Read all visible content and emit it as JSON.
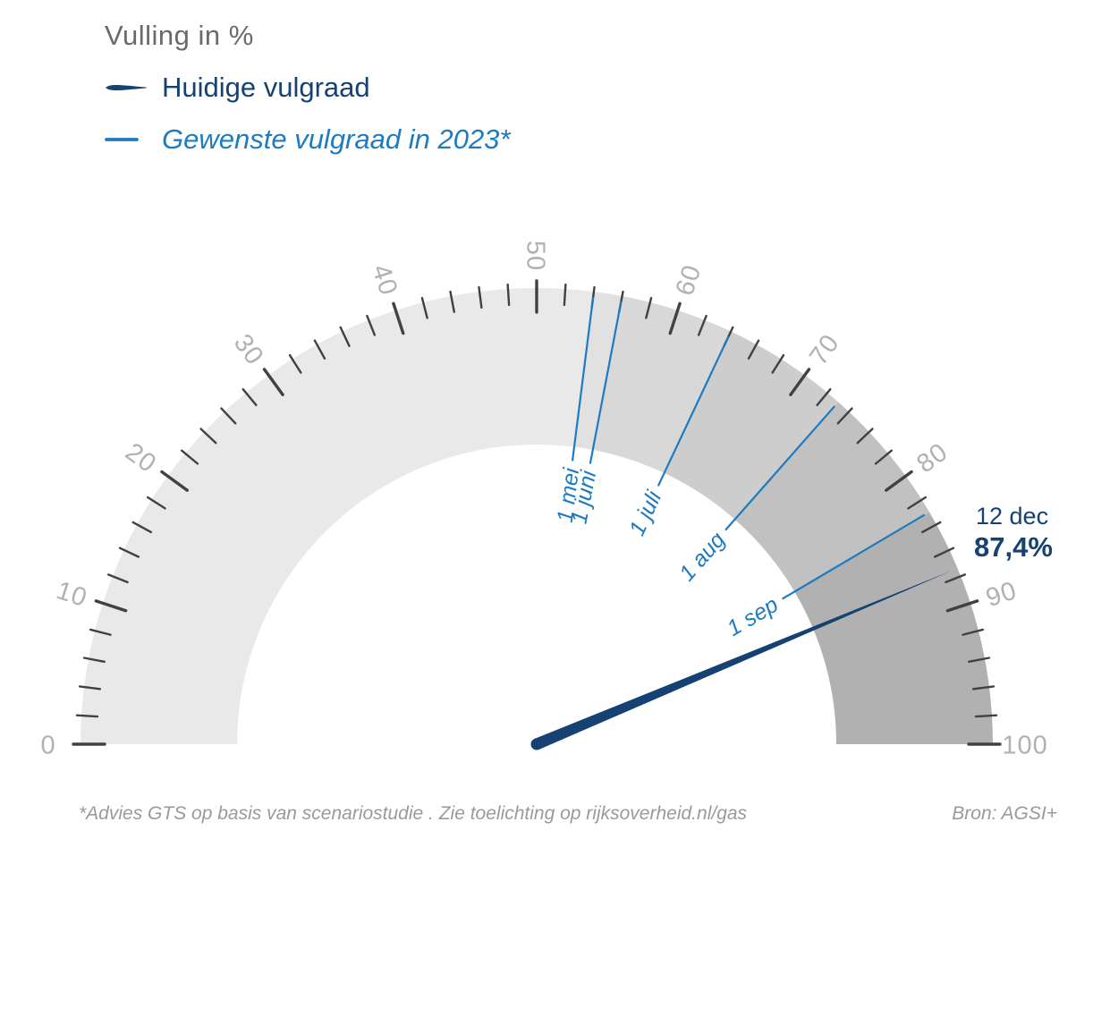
{
  "title": {
    "text": "Vulling in %"
  },
  "legend": {
    "items": [
      {
        "label": "Huidige vulgraad",
        "marker": "needle-dash",
        "color": "#154273",
        "style": "normal"
      },
      {
        "label": "Gewenste vulgraad in 2023*",
        "marker": "line-dash",
        "color": "#1e7bc0",
        "style": "italic"
      }
    ]
  },
  "gauge": {
    "min": 0,
    "max": 100,
    "minor_tick_step": 2,
    "major_tick_step": 10,
    "tick_label_values": [
      0,
      10,
      20,
      30,
      40,
      50,
      60,
      70,
      80,
      90,
      100
    ],
    "segments": [
      {
        "from": 0,
        "to": 54,
        "color": "#e9e9e9"
      },
      {
        "from": 54,
        "to": 56,
        "color": "#e1e1e1"
      },
      {
        "from": 56,
        "to": 64,
        "color": "#d8d8d8"
      },
      {
        "from": 64,
        "to": 73,
        "color": "#cdcdcd"
      },
      {
        "from": 73,
        "to": 83,
        "color": "#c1c1c1"
      },
      {
        "from": 83,
        "to": 100,
        "color": "#b1b1b1"
      }
    ],
    "targets": [
      {
        "label": "1 mei",
        "value": 54
      },
      {
        "label": "1 juni",
        "value": 56
      },
      {
        "label": "1 juli",
        "value": 64
      },
      {
        "label": "1 aug",
        "value": 73
      },
      {
        "label": "1 sep",
        "value": 83
      }
    ],
    "needle": {
      "value": 87.4,
      "date_label": "12 dec",
      "value_label": "87,4%"
    }
  },
  "footnote": "*Advies GTS op basis van scenariostudie . Zie toelichting op rijksoverheid.nl/gas",
  "source": "Bron: AGSI+",
  "colors": {
    "navy": "#154273",
    "blue": "#1e7bc0",
    "title_gray": "#6a6a6a",
    "tick_label_gray": "#b1b1b1",
    "tick_stroke": "#414141",
    "footnote_gray": "#9a9a9a"
  },
  "chart_data": {
    "type": "gauge",
    "title": "Vulling in %",
    "unit": "%",
    "range": [
      0,
      100
    ],
    "tick_interval_major": 10,
    "tick_interval_minor": 2,
    "legend_position": "top-left",
    "series": [
      {
        "name": "Huidige vulgraad",
        "points": [
          {
            "label": "12 dec",
            "value": 87.4,
            "display": "87,4%"
          }
        ]
      },
      {
        "name": "Gewenste vulgraad in 2023*",
        "points": [
          {
            "label": "1 mei",
            "value": 54
          },
          {
            "label": "1 juni",
            "value": 56
          },
          {
            "label": "1 juli",
            "value": 64
          },
          {
            "label": "1 aug",
            "value": 73
          },
          {
            "label": "1 sep",
            "value": 83
          }
        ]
      }
    ],
    "ring_segments": [
      {
        "from": 0,
        "to": 54
      },
      {
        "from": 54,
        "to": 56
      },
      {
        "from": 56,
        "to": 64
      },
      {
        "from": 64,
        "to": 73
      },
      {
        "from": 73,
        "to": 83
      },
      {
        "from": 83,
        "to": 100
      }
    ],
    "annotations": [
      "*Advies GTS op basis van scenariostudie . Zie toelichting op rijksoverheid.nl/gas",
      "Bron: AGSI+"
    ]
  }
}
